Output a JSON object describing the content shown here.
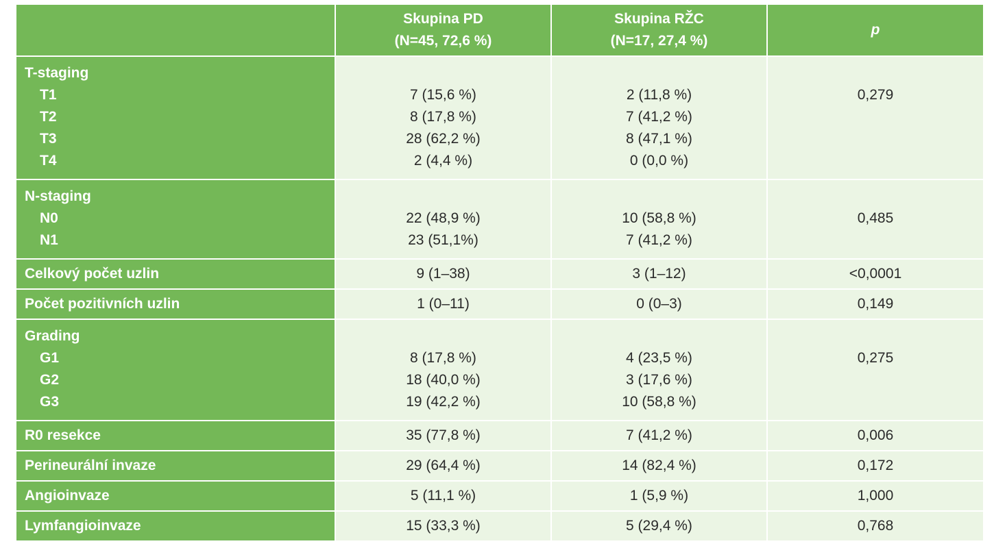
{
  "header": {
    "col1": [
      "Skupina PD",
      "(N=45, 72,6 %)"
    ],
    "col2": [
      "Skupina RŽC",
      "(N=17, 27,4 %)"
    ],
    "col3": "p"
  },
  "t_staging": {
    "label": "T-staging",
    "rows": [
      {
        "name": "T1",
        "pd": "7 (15,6 %)",
        "rzc": "2 (11,8 %)"
      },
      {
        "name": "T2",
        "pd": "8 (17,8 %)",
        "rzc": "7 (41,2 %)"
      },
      {
        "name": "T3",
        "pd": "28 (62,2 %)",
        "rzc": "8 (47,1 %)"
      },
      {
        "name": "T4",
        "pd": "2 (4,4 %)",
        "rzc": "0 (0,0 %)"
      }
    ],
    "p": "0,279"
  },
  "n_staging": {
    "label": "N-staging",
    "rows": [
      {
        "name": "N0",
        "pd": "22 (48,9 %)",
        "rzc": "10 (58,8 %)"
      },
      {
        "name": "N1",
        "pd": "23 (51,1%)",
        "rzc": "7 (41,2 %)"
      }
    ],
    "p": "0,485"
  },
  "celkovy": {
    "label": "Celkový počet uzlin",
    "pd": "9 (1–38)",
    "rzc": "3 (1–12)",
    "p": "<0,0001"
  },
  "pozitivni": {
    "label": "Počet pozitivních uzlin",
    "pd": "1 (0–11)",
    "rzc": "0 (0–3)",
    "p": "0,149"
  },
  "grading": {
    "label": "Grading",
    "rows": [
      {
        "name": "G1",
        "pd": "8 (17,8 %)",
        "rzc": "4 (23,5 %)"
      },
      {
        "name": "G2",
        "pd": "18 (40,0 %)",
        "rzc": "3 (17,6 %)"
      },
      {
        "name": "G3",
        "pd": "19 (42,2 %)",
        "rzc": "10 (58,8 %)"
      }
    ],
    "p": "0,275"
  },
  "r0": {
    "label": "R0 resekce",
    "pd": "35 (77,8 %)",
    "rzc": "7 (41,2 %)",
    "p": "0,006"
  },
  "perineural": {
    "label": "Perineurální invaze",
    "pd": "29 (64,4 %)",
    "rzc": "14 (82,4 %)",
    "p": "0,172"
  },
  "angio": {
    "label": "Angioinvaze",
    "pd": "5 (11,1 %)",
    "rzc": "1 (5,9 %)",
    "p": "1,000"
  },
  "lymf": {
    "label": "Lymfangioinvaze",
    "pd": "15 (33,3 %)",
    "rzc": "5 (29,4 %)",
    "p": "0,768"
  }
}
